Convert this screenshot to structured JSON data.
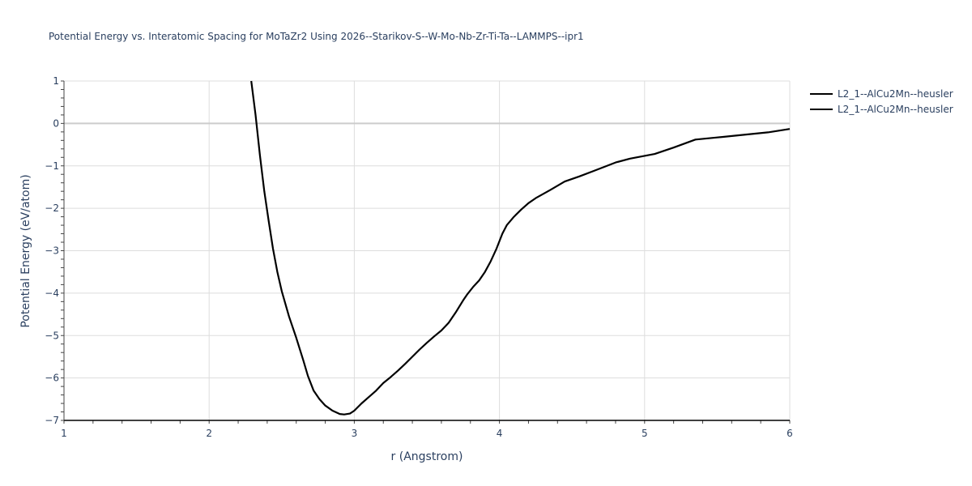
{
  "chart": {
    "title": "Potential Energy vs. Interatomic Spacing for MoTaZr2 Using 2026--Starikov-S--W-Mo-Nb-Zr-Ti-Ta--LAMMPS--ipr1",
    "xlabel": "r (Angstrom)",
    "ylabel": "Potential Energy (eV/atom)",
    "x_ticks": [
      "1",
      "2",
      "3",
      "4",
      "5",
      "6"
    ],
    "y_ticks": [
      "1",
      "0",
      "−1",
      "−2",
      "−3",
      "−4",
      "−5",
      "−6",
      "−7"
    ],
    "legend": [
      {
        "label": "L2_1--AlCu2Mn--heusler",
        "color": "#000000"
      },
      {
        "label": "L2_1--AlCu2Mn--heusler",
        "color": "#000000"
      }
    ]
  },
  "chart_data": {
    "type": "line",
    "title": "Potential Energy vs. Interatomic Spacing for MoTaZr2 Using 2026--Starikov-S--W-Mo-Nb-Zr-Ti-Ta--LAMMPS--ipr1",
    "xlabel": "r (Angstrom)",
    "ylabel": "Potential Energy (eV/atom)",
    "xlim": [
      1,
      6
    ],
    "ylim": [
      -7,
      1
    ],
    "grid": true,
    "legend_position": "right",
    "series": [
      {
        "name": "L2_1--AlCu2Mn--heusler",
        "color": "#000000",
        "x": [
          2.29,
          2.32,
          2.35,
          2.38,
          2.41,
          2.44,
          2.47,
          2.5,
          2.55,
          2.6,
          2.65,
          2.68,
          2.72,
          2.76,
          2.8,
          2.85,
          2.9,
          2.93,
          2.97,
          3.0,
          3.05,
          3.1,
          3.15,
          3.2,
          3.25,
          3.3,
          3.35,
          3.4,
          3.45,
          3.5,
          3.55,
          3.6,
          3.65,
          3.7,
          3.75,
          3.78,
          3.82,
          3.86,
          3.9,
          3.94,
          3.98,
          4.02,
          4.05,
          4.1,
          4.15,
          4.2,
          4.25,
          4.35,
          4.45,
          4.55,
          4.65,
          4.8,
          4.9,
          5.07,
          5.2,
          5.35,
          5.5,
          5.65,
          5.85,
          6.0
        ],
        "y": [
          1.0,
          0.2,
          -0.75,
          -1.6,
          -2.3,
          -2.95,
          -3.5,
          -3.95,
          -4.55,
          -5.05,
          -5.6,
          -5.95,
          -6.3,
          -6.5,
          -6.65,
          -6.77,
          -6.85,
          -6.86,
          -6.84,
          -6.77,
          -6.6,
          -6.45,
          -6.3,
          -6.12,
          -5.98,
          -5.83,
          -5.67,
          -5.5,
          -5.33,
          -5.17,
          -5.02,
          -4.88,
          -4.7,
          -4.45,
          -4.17,
          -4.02,
          -3.85,
          -3.7,
          -3.5,
          -3.25,
          -2.95,
          -2.6,
          -2.4,
          -2.2,
          -2.03,
          -1.88,
          -1.76,
          -1.57,
          -1.37,
          -1.25,
          -1.12,
          -0.92,
          -0.83,
          -0.72,
          -0.57,
          -0.38,
          -0.33,
          -0.28,
          -0.21,
          -0.13
        ]
      }
    ]
  }
}
